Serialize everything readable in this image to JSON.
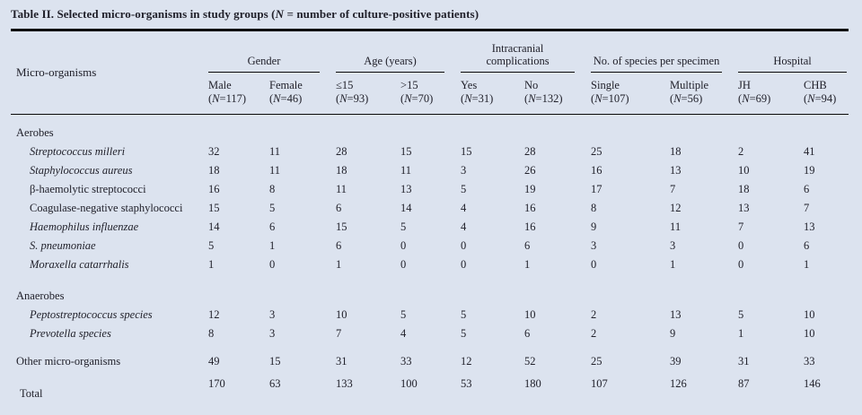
{
  "colors": {
    "background": "#dce3ef",
    "text": "#21212b",
    "rule": "#0a0a0a"
  },
  "title": "Table II. Selected micro-organisms in study groups (N = number of culture-positive patients)",
  "table": {
    "row_header": "Micro-organisms",
    "groups": [
      {
        "label": "Gender"
      },
      {
        "label": "Age (years)"
      },
      {
        "label": "Intracranial complications"
      },
      {
        "label": "No. of species per specimen"
      },
      {
        "label": "Hospital"
      }
    ],
    "columns": [
      {
        "label": "Male",
        "n": "(N=117)"
      },
      {
        "label": "Female",
        "n": "(N=46)"
      },
      {
        "label": "≤15",
        "n": "(N=93)"
      },
      {
        "label": ">15",
        "n": "(N=70)"
      },
      {
        "label": "Yes",
        "n": "(N=31)"
      },
      {
        "label": "No",
        "n": "(N=132)"
      },
      {
        "label": "Single",
        "n": "(N=107)"
      },
      {
        "label": "Multiple",
        "n": "(N=56)"
      },
      {
        "label": "JH",
        "n": "(N=69)"
      },
      {
        "label": "CHB",
        "n": "(N=94)"
      }
    ],
    "sections": [
      {
        "heading": "Aerobes",
        "rows": [
          {
            "name": "Streptococcus milleri",
            "italic": true,
            "values": [
              32,
              11,
              28,
              15,
              15,
              28,
              25,
              18,
              2,
              41
            ]
          },
          {
            "name": "Staphylococcus aureus",
            "italic": true,
            "values": [
              18,
              11,
              18,
              11,
              3,
              26,
              16,
              13,
              10,
              19
            ]
          },
          {
            "name": "β-haemolytic streptococci",
            "italic": false,
            "values": [
              16,
              8,
              11,
              13,
              5,
              19,
              17,
              7,
              18,
              6
            ]
          },
          {
            "name": "Coagulase-negative staphylococci",
            "italic": false,
            "values": [
              15,
              5,
              6,
              14,
              4,
              16,
              8,
              12,
              13,
              7
            ]
          },
          {
            "name": "Haemophilus influenzae",
            "italic": true,
            "values": [
              14,
              6,
              15,
              5,
              4,
              16,
              9,
              11,
              7,
              13
            ]
          },
          {
            "name": "S. pneumoniae",
            "italic": true,
            "values": [
              5,
              1,
              6,
              0,
              0,
              6,
              3,
              3,
              0,
              6
            ]
          },
          {
            "name": "Moraxella catarrhalis",
            "italic": true,
            "values": [
              1,
              0,
              1,
              0,
              0,
              1,
              0,
              1,
              0,
              1
            ]
          }
        ]
      },
      {
        "heading": "Anaerobes",
        "rows": [
          {
            "name": "Peptostreptococcus species",
            "italic": true,
            "values": [
              12,
              3,
              10,
              5,
              5,
              10,
              2,
              13,
              5,
              10
            ]
          },
          {
            "name": "Prevotella species",
            "italic": true,
            "values": [
              8,
              3,
              7,
              4,
              5,
              6,
              2,
              9,
              1,
              10
            ]
          }
        ]
      }
    ],
    "footer_rows": [
      {
        "name": "Other micro-organisms",
        "values": [
          49,
          15,
          31,
          33,
          12,
          52,
          25,
          39,
          31,
          33
        ]
      },
      {
        "name": "Total",
        "values": [
          170,
          63,
          133,
          100,
          53,
          180,
          107,
          126,
          87,
          146
        ]
      }
    ]
  }
}
